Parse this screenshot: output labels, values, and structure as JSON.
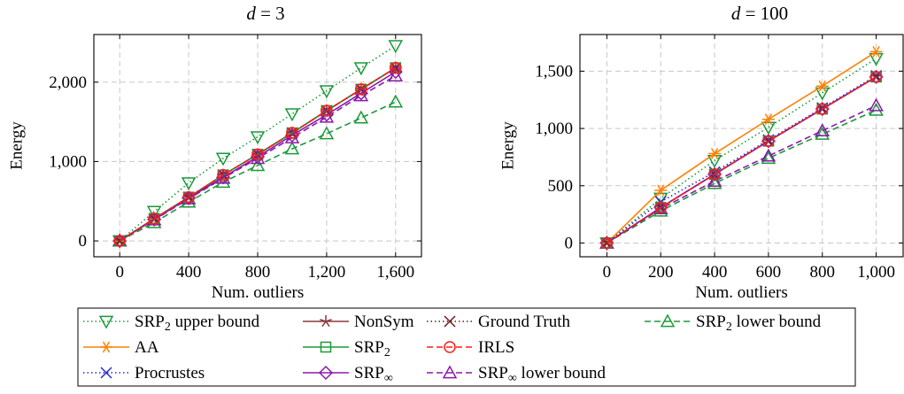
{
  "chart_data": [
    {
      "type": "line",
      "title": "d = 3",
      "title_parts": {
        "var": "d",
        "rest": " = 3"
      },
      "xlabel": "Num. outliers",
      "ylabel": "Energy",
      "xlim": [
        -150,
        1750
      ],
      "ylim": [
        -200,
        2600
      ],
      "grid": true,
      "xticks": [
        0,
        400,
        800,
        1200,
        1600
      ],
      "xtick_labels": [
        "0",
        "400",
        "800",
        "1,200",
        "1,600"
      ],
      "yticks": [
        0,
        1000,
        2000
      ],
      "ytick_labels": [
        "0",
        "1,000",
        "2,000"
      ],
      "x": [
        0,
        200,
        400,
        600,
        800,
        1000,
        1200,
        1400,
        1600
      ],
      "series": [
        {
          "key": "srp2_ub",
          "values": [
            0,
            370,
            730,
            1040,
            1310,
            1600,
            1890,
            2180,
            2460
          ]
        },
        {
          "key": "aa",
          "values": [
            0,
            280,
            550,
            830,
            1090,
            1360,
            1640,
            1910,
            2180
          ]
        },
        {
          "key": "procrustes",
          "values": [
            0,
            280,
            550,
            830,
            1090,
            1360,
            1640,
            1910,
            2180
          ]
        },
        {
          "key": "nonsym",
          "values": [
            0,
            280,
            550,
            830,
            1090,
            1360,
            1640,
            1910,
            2180
          ]
        },
        {
          "key": "srp2",
          "values": [
            0,
            280,
            550,
            830,
            1090,
            1360,
            1640,
            1910,
            2180
          ]
        },
        {
          "key": "srpinf",
          "values": [
            0,
            270,
            540,
            800,
            1060,
            1330,
            1590,
            1860,
            2130
          ]
        },
        {
          "key": "gt",
          "values": [
            0,
            280,
            550,
            830,
            1090,
            1360,
            1640,
            1910,
            2180
          ]
        },
        {
          "key": "irls",
          "values": [
            0,
            280,
            550,
            830,
            1090,
            1360,
            1640,
            1910,
            2180
          ]
        },
        {
          "key": "srpinf_lb",
          "values": [
            0,
            265,
            530,
            790,
            1040,
            1300,
            1560,
            1830,
            2080
          ]
        },
        {
          "key": "srp2_lb",
          "values": [
            0,
            230,
            490,
            740,
            950,
            1160,
            1350,
            1550,
            1750
          ]
        }
      ]
    },
    {
      "type": "line",
      "title": "d = 100",
      "title_parts": {
        "var": "d",
        "rest": " = 100"
      },
      "xlabel": "Num. outliers",
      "ylabel": "Energy",
      "xlim": [
        -100,
        1100
      ],
      "ylim": [
        -120,
        1820
      ],
      "grid": true,
      "xticks": [
        0,
        200,
        400,
        600,
        800,
        1000
      ],
      "xtick_labels": [
        "0",
        "200",
        "400",
        "600",
        "800",
        "1,000"
      ],
      "yticks": [
        0,
        500,
        1000,
        1500
      ],
      "ytick_labels": [
        "0",
        "500",
        "1,000",
        "1,500"
      ],
      "x": [
        0,
        200,
        400,
        600,
        800,
        1000
      ],
      "series": [
        {
          "key": "srp2_ub",
          "values": [
            0,
            390,
            720,
            1010,
            1310,
            1610
          ]
        },
        {
          "key": "aa",
          "values": [
            0,
            460,
            780,
            1080,
            1370,
            1670
          ]
        },
        {
          "key": "procrustes",
          "values": [
            0,
            360,
            620,
            900,
            1180,
            1460
          ]
        },
        {
          "key": "nonsym",
          "values": [
            0,
            310,
            600,
            890,
            1170,
            1450
          ]
        },
        {
          "key": "srp2",
          "values": [
            0,
            310,
            600,
            890,
            1170,
            1450
          ]
        },
        {
          "key": "srpinf",
          "values": [
            0,
            310,
            600,
            890,
            1170,
            1450
          ]
        },
        {
          "key": "gt",
          "values": [
            0,
            310,
            600,
            890,
            1170,
            1450
          ]
        },
        {
          "key": "irls",
          "values": [
            0,
            310,
            600,
            890,
            1170,
            1450
          ]
        },
        {
          "key": "srpinf_lb",
          "values": [
            0,
            300,
            540,
            760,
            980,
            1200
          ]
        },
        {
          "key": "srp2_lb",
          "values": [
            0,
            280,
            520,
            740,
            950,
            1160
          ]
        }
      ]
    }
  ],
  "legend": {
    "placement": "bottom",
    "entries": [
      {
        "key": "srp2_ub",
        "label": "SRP",
        "sub": "2",
        "suffix": " upper bound",
        "color": "#1a9a3a",
        "dash": "dotted",
        "marker": "triangle-down"
      },
      {
        "key": "nonsym",
        "label": "NonSym",
        "sub": "",
        "suffix": "",
        "color": "#8b3a3a",
        "dash": "solid",
        "marker": "star"
      },
      {
        "key": "gt",
        "label": "Ground Truth",
        "sub": "",
        "suffix": "",
        "color": "#6b1a1a",
        "dash": "dotted",
        "marker": "x"
      },
      {
        "key": "srp2_lb",
        "label": "SRP",
        "sub": "2",
        "suffix": " lower bound",
        "color": "#1a9a3a",
        "dash": "dashed",
        "marker": "triangle-up"
      },
      {
        "key": "aa",
        "label": "AA",
        "sub": "",
        "suffix": "",
        "color": "#ff8000",
        "dash": "solid",
        "marker": "asterisk"
      },
      {
        "key": "srp2",
        "label": "SRP",
        "sub": "2",
        "suffix": "",
        "color": "#1a9a3a",
        "dash": "solid",
        "marker": "square"
      },
      {
        "key": "irls",
        "label": "IRLS",
        "sub": "",
        "suffix": "",
        "color": "#ff1a1a",
        "dash": "dashed",
        "marker": "circle"
      },
      {
        "key": "procrustes",
        "label": "Procrustes",
        "sub": "",
        "suffix": "",
        "color": "#2a2ad0",
        "dash": "dotted",
        "marker": "x"
      },
      {
        "key": "srpinf",
        "label": "SRP",
        "sub": "∞",
        "suffix": "",
        "color": "#8a1aa8",
        "dash": "solid",
        "marker": "diamond"
      },
      {
        "key": "srpinf_lb",
        "label": "SRP",
        "sub": "∞",
        "suffix": " lower bound",
        "color": "#8a1aa8",
        "dash": "dashed",
        "marker": "triangle-up"
      }
    ]
  }
}
